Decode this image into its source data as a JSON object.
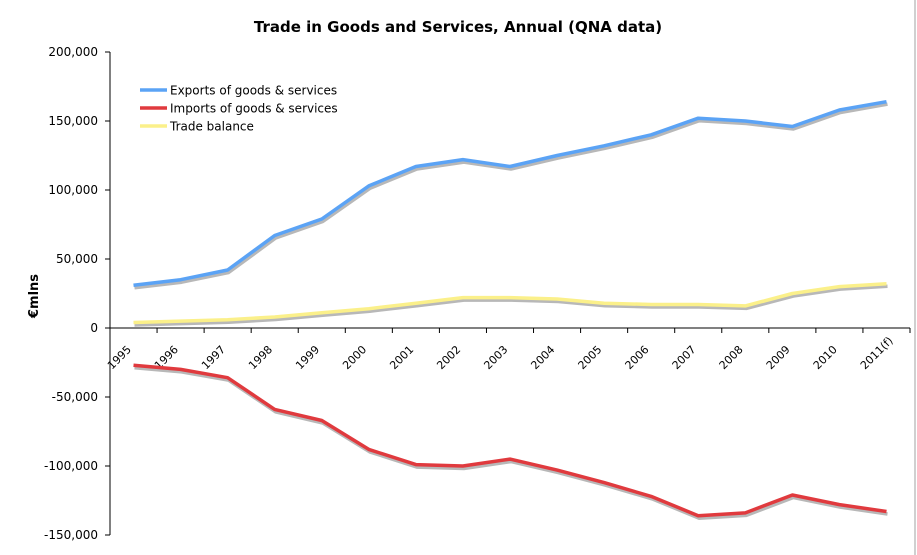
{
  "chart_data": {
    "type": "line",
    "title": "Trade in Goods and Services, Annual (QNA data)",
    "xlabel": "",
    "ylabel": "€mlns",
    "categories": [
      "1995",
      "1996",
      "1997",
      "1998",
      "1999",
      "2000",
      "2001",
      "2002",
      "2003",
      "2004",
      "2005",
      "2006",
      "2007",
      "2008",
      "2009",
      "2010",
      "2011(f)"
    ],
    "ylim": [
      -150000,
      200000
    ],
    "yticks": [
      200000,
      150000,
      100000,
      50000,
      0,
      -50000,
      -100000,
      -150000
    ],
    "ytick_labels": [
      "200,000",
      "150,000",
      "100,000",
      "50,000",
      "0",
      "-50,000",
      "-100,000",
      "-150,000"
    ],
    "grid": false,
    "legend_position": "top-left",
    "series": [
      {
        "name": "Exports of goods & services",
        "color": "#5ba3f5",
        "values": [
          31000,
          35000,
          42000,
          67000,
          79000,
          103000,
          117000,
          122000,
          117000,
          125000,
          132000,
          140000,
          152000,
          150000,
          146000,
          158000,
          164000
        ]
      },
      {
        "name": "Imports of goods & services",
        "color": "#e03a3e",
        "values": [
          -27000,
          -30000,
          -36000,
          -59000,
          -67000,
          -88000,
          -99000,
          -100000,
          -95000,
          -103000,
          -112000,
          -122000,
          -136000,
          -134000,
          -121000,
          -128000,
          -133000
        ]
      },
      {
        "name": "Trade balance",
        "color": "#fbf08a",
        "values": [
          4000,
          5000,
          6000,
          8000,
          11000,
          14000,
          18000,
          22000,
          22000,
          21000,
          18000,
          17000,
          17000,
          16000,
          25000,
          30000,
          32000
        ]
      }
    ]
  }
}
